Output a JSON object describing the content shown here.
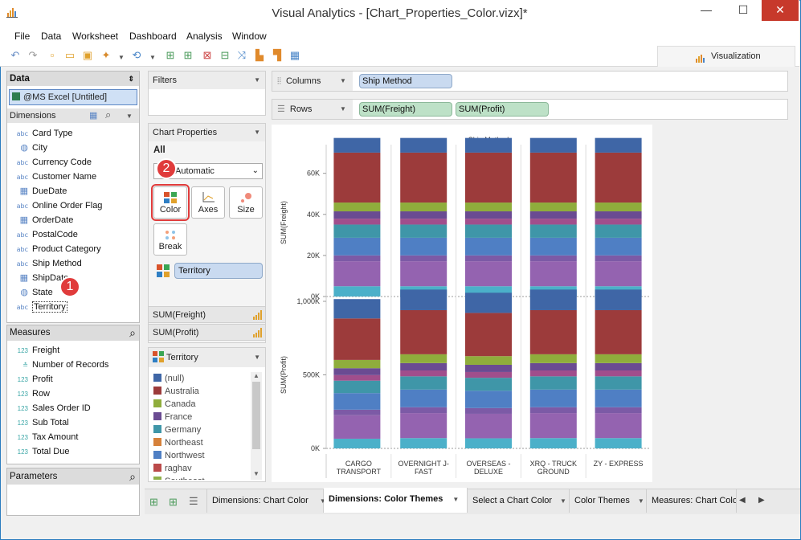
{
  "window": {
    "title": "Visual Analytics - [Chart_Properties_Color.vizx]*",
    "minimize": "—",
    "maximize": "☐",
    "close": "✕"
  },
  "menu": [
    "File",
    "Data",
    "Worksheet",
    "Dashboard",
    "Analysis",
    "Window"
  ],
  "visualization_button": "Visualization",
  "data_panel": {
    "title": "Data",
    "source": "@MS Excel [Untitled]",
    "dimensions_title": "Dimensions",
    "dimensions": [
      {
        "label": "Card Type",
        "type": "abc"
      },
      {
        "label": "City",
        "type": "geo"
      },
      {
        "label": "Currency Code",
        "type": "abc"
      },
      {
        "label": "Customer Name",
        "type": "abc"
      },
      {
        "label": "DueDate",
        "type": "date"
      },
      {
        "label": "Online Order Flag",
        "type": "abc"
      },
      {
        "label": "OrderDate",
        "type": "date"
      },
      {
        "label": "PostalCode",
        "type": "abc"
      },
      {
        "label": "Product Category",
        "type": "abc"
      },
      {
        "label": "Ship Method",
        "type": "abc"
      },
      {
        "label": "ShipDate",
        "type": "date"
      },
      {
        "label": "State",
        "type": "geo"
      },
      {
        "label": "Territory",
        "type": "abc"
      }
    ],
    "measures_title": "Measures",
    "measures": [
      {
        "label": "Freight",
        "type": "123"
      },
      {
        "label": "Number of Records",
        "type": "calc"
      },
      {
        "label": "Profit",
        "type": "123"
      },
      {
        "label": "Row",
        "type": "123"
      },
      {
        "label": "Sales Order ID",
        "type": "123"
      },
      {
        "label": "Sub Total",
        "type": "123"
      },
      {
        "label": "Tax Amount",
        "type": "123"
      },
      {
        "label": "Total Due",
        "type": "123"
      }
    ],
    "parameters_title": "Parameters"
  },
  "filters_title": "Filters",
  "chart_properties": {
    "title": "Chart Properties",
    "all_label": "All",
    "mark_type": "Automatic",
    "cards": [
      "Color",
      "Axes",
      "Size",
      "Break"
    ],
    "color_field": "Territory",
    "measures": [
      "SUM(Freight)",
      "SUM(Profit)"
    ]
  },
  "legend": {
    "title": "Territory",
    "items": [
      {
        "label": "(null)",
        "color": "#3f66a6"
      },
      {
        "label": "Australia",
        "color": "#9c3b3b"
      },
      {
        "label": "Canada",
        "color": "#8fad3c"
      },
      {
        "label": "France",
        "color": "#6a4b92"
      },
      {
        "label": "Germany",
        "color": "#3f96a8"
      },
      {
        "label": "Northeast",
        "color": "#d6813a"
      },
      {
        "label": "Northwest",
        "color": "#4f7fc4"
      },
      {
        "label": "raghav",
        "color": "#bb4a4a"
      },
      {
        "label": "Southeast",
        "color": "#8fb04a"
      }
    ]
  },
  "shelves": {
    "columns_label": "Columns",
    "columns_pill": "Ship Method",
    "rows_label": "Rows",
    "rows_pills": [
      "SUM(Freight)",
      "SUM(Profit)"
    ]
  },
  "chart_data": [
    {
      "type": "bar",
      "stacked": true,
      "title": "Ship Method",
      "ylabel": "SUM(Freight)",
      "categories": [
        "CARGO TRANSPORT",
        "OVERNIGHT J-FAST",
        "OVERSEAS - DELUXE",
        "XRQ - TRUCK GROUND",
        "ZY - EXPRESS"
      ],
      "ylim": [
        0,
        72000
      ],
      "yticks": [
        "0K",
        "20K",
        "40K",
        "60K"
      ],
      "totals": [
        71500,
        71500,
        71500,
        71500,
        71500
      ],
      "segment_colors": [
        "#4bb0c9",
        "#9463b0",
        "#7c5aa6",
        "#4f7fc4",
        "#3f96a8",
        "#a04e8c",
        "#6a4b92",
        "#8fad3c",
        "#9c3b3b",
        "#3f66a6"
      ],
      "segment_shares": [
        0.07,
        0.17,
        0.04,
        0.12,
        0.09,
        0.04,
        0.05,
        0.06,
        0.34,
        0.1
      ]
    },
    {
      "type": "bar",
      "stacked": true,
      "ylabel": "SUM(Profit)",
      "categories": [
        "CARGO TRANSPORT",
        "OVERNIGHT J-FAST",
        "OVERSEAS - DELUXE",
        "XRQ - TRUCK GROUND",
        "ZY - EXPRESS"
      ],
      "ylim": [
        0,
        1000000
      ],
      "yticks": [
        "0K",
        "500K",
        "1,000K"
      ],
      "totals": [
        940000,
        1000000,
        980000,
        1000000,
        1000000
      ],
      "segment_colors": [
        "#4bb0c9",
        "#9463b0",
        "#7c5aa6",
        "#4f7fc4",
        "#3f96a8",
        "#a04e8c",
        "#6a4b92",
        "#8fad3c",
        "#9c3b3b",
        "#3f66a6"
      ],
      "segment_shares": [
        0.07,
        0.17,
        0.04,
        0.12,
        0.09,
        0.04,
        0.05,
        0.06,
        0.3,
        0.14
      ]
    }
  ],
  "x_labels": [
    [
      "CARGO",
      "TRANSPORT"
    ],
    [
      "OVERNIGHT J-",
      "FAST"
    ],
    [
      "OVERSEAS -",
      "DELUXE"
    ],
    [
      "XRQ - TRUCK",
      "GROUND"
    ],
    [
      "ZY - EXPRESS",
      ""
    ]
  ],
  "sheet_tabs": [
    "Dimensions: Chart Color",
    "Dimensions: Color Themes",
    "Select a Chart Color",
    "Color Themes",
    "Measures: Chart Colo"
  ],
  "badges": [
    "1",
    "2"
  ]
}
